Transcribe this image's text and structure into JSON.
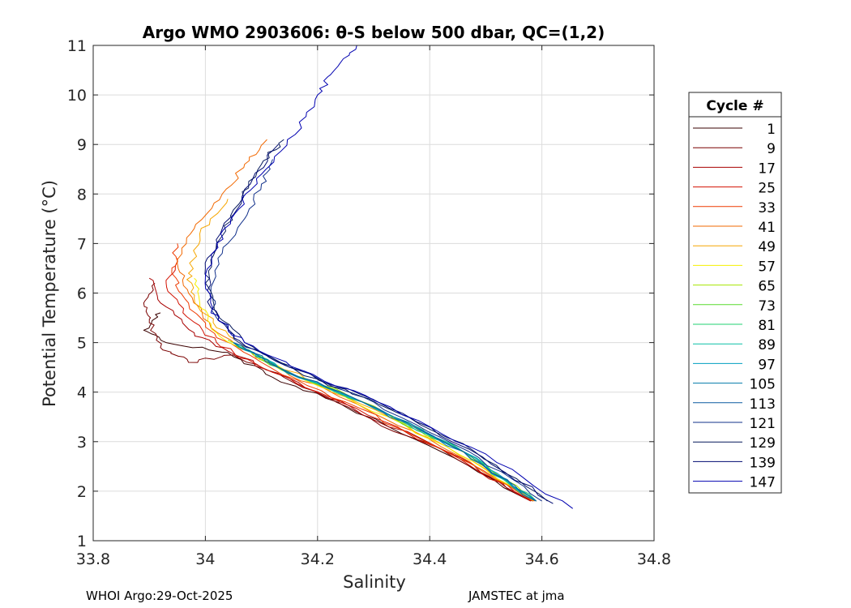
{
  "chart_data": {
    "type": "line",
    "title": "Argo WMO 2903606: θ-S below 500 dbar,  QC=(1,2)",
    "xlabel": "Salinity",
    "ylabel": "Potential Temperature (°C)",
    "xlim": [
      33.8,
      34.8
    ],
    "ylim": [
      1,
      11
    ],
    "x_ticks": [
      "33.8",
      "34",
      "34.2",
      "34.4",
      "34.6",
      "34.8"
    ],
    "y_ticks": [
      "1",
      "2",
      "3",
      "4",
      "5",
      "6",
      "7",
      "8",
      "9",
      "10",
      "11"
    ],
    "grid": true,
    "legend_title": "Cycle #",
    "legend_position": "right",
    "series": [
      {
        "name": "1",
        "color": "#3a0000",
        "points": [
          [
            34.58,
            1.8
          ],
          [
            34.42,
            2.8
          ],
          [
            34.25,
            3.7
          ],
          [
            34.12,
            4.3
          ],
          [
            34.04,
            4.8
          ],
          [
            33.93,
            5.0
          ],
          [
            33.89,
            5.25
          ],
          [
            33.92,
            5.6
          ]
        ]
      },
      {
        "name": "9",
        "color": "#7a0000",
        "points": [
          [
            34.585,
            1.8
          ],
          [
            34.44,
            2.7
          ],
          [
            34.27,
            3.6
          ],
          [
            34.14,
            4.3
          ],
          [
            34.05,
            4.75
          ],
          [
            33.97,
            4.6
          ],
          [
            33.92,
            4.9
          ],
          [
            33.9,
            5.4
          ],
          [
            33.89,
            5.8
          ],
          [
            33.91,
            6.2
          ]
        ]
      },
      {
        "name": "17",
        "color": "#a80000",
        "points": [
          [
            34.583,
            1.8
          ],
          [
            34.43,
            2.8
          ],
          [
            34.26,
            3.7
          ],
          [
            34.12,
            4.4
          ],
          [
            34.03,
            4.9
          ],
          [
            33.98,
            5.2
          ],
          [
            33.92,
            5.8
          ],
          [
            33.9,
            6.3
          ]
        ]
      },
      {
        "name": "25",
        "color": "#d21000",
        "points": [
          [
            34.58,
            1.8
          ],
          [
            34.41,
            2.9
          ],
          [
            34.24,
            3.8
          ],
          [
            34.1,
            4.5
          ],
          [
            34.02,
            5.0
          ],
          [
            33.96,
            5.6
          ],
          [
            33.93,
            6.2
          ],
          [
            33.95,
            6.7
          ]
        ]
      },
      {
        "name": "33",
        "color": "#ee3a00",
        "points": [
          [
            34.587,
            1.8
          ],
          [
            34.42,
            2.85
          ],
          [
            34.25,
            3.8
          ],
          [
            34.1,
            4.6
          ],
          [
            34.02,
            5.1
          ],
          [
            33.97,
            5.8
          ],
          [
            33.94,
            6.4
          ],
          [
            33.95,
            7.0
          ]
        ]
      },
      {
        "name": "41",
        "color": "#f26800",
        "points": [
          [
            34.585,
            1.8
          ],
          [
            34.42,
            2.9
          ],
          [
            34.24,
            3.9
          ],
          [
            34.09,
            4.7
          ],
          [
            34.01,
            5.3
          ],
          [
            33.97,
            6.0
          ],
          [
            33.95,
            6.6
          ],
          [
            33.98,
            7.3
          ],
          [
            34.03,
            8.0
          ],
          [
            34.07,
            8.6
          ],
          [
            34.11,
            9.1
          ]
        ]
      },
      {
        "name": "49",
        "color": "#f6a600",
        "points": [
          [
            34.585,
            1.8
          ],
          [
            34.43,
            2.9
          ],
          [
            34.25,
            3.9
          ],
          [
            34.1,
            4.7
          ],
          [
            34.02,
            5.3
          ],
          [
            33.98,
            5.9
          ],
          [
            33.97,
            6.4
          ],
          [
            33.99,
            7.2
          ],
          [
            34.04,
            7.9
          ]
        ]
      },
      {
        "name": "57",
        "color": "#f5f000",
        "points": [
          [
            34.59,
            1.8
          ],
          [
            34.43,
            2.9
          ],
          [
            34.25,
            3.9
          ],
          [
            34.1,
            4.65
          ],
          [
            34.02,
            5.2
          ],
          [
            33.99,
            5.8
          ],
          [
            33.98,
            6.3
          ]
        ]
      },
      {
        "name": "65",
        "color": "#a6e600",
        "points": [
          [
            34.59,
            1.8
          ],
          [
            34.45,
            2.85
          ],
          [
            34.27,
            3.85
          ],
          [
            34.12,
            4.55
          ],
          [
            34.04,
            5.05
          ]
        ]
      },
      {
        "name": "73",
        "color": "#59dc2e",
        "points": [
          [
            34.59,
            1.8
          ],
          [
            34.46,
            2.8
          ],
          [
            34.28,
            3.8
          ],
          [
            34.13,
            4.5
          ],
          [
            34.05,
            5.0
          ]
        ]
      },
      {
        "name": "81",
        "color": "#20d070",
        "points": [
          [
            34.59,
            1.8
          ],
          [
            34.46,
            2.8
          ],
          [
            34.28,
            3.8
          ],
          [
            34.13,
            4.5
          ],
          [
            34.05,
            5.0
          ]
        ]
      },
      {
        "name": "89",
        "color": "#0abfa6",
        "points": [
          [
            34.59,
            1.8
          ],
          [
            34.46,
            2.8
          ],
          [
            34.28,
            3.8
          ],
          [
            34.13,
            4.5
          ],
          [
            34.05,
            5.0
          ]
        ]
      },
      {
        "name": "97",
        "color": "#009fc0",
        "points": [
          [
            34.59,
            1.8
          ],
          [
            34.46,
            2.8
          ],
          [
            34.28,
            3.8
          ],
          [
            34.13,
            4.5
          ],
          [
            34.05,
            5.0
          ]
        ]
      },
      {
        "name": "105",
        "color": "#007aa8",
        "points": [
          [
            34.59,
            1.8
          ],
          [
            34.46,
            2.8
          ],
          [
            34.28,
            3.8
          ],
          [
            34.13,
            4.5
          ],
          [
            34.05,
            5.0
          ]
        ]
      },
      {
        "name": "113",
        "color": "#0a5aa0",
        "points": [
          [
            34.59,
            1.8
          ],
          [
            34.46,
            2.8
          ],
          [
            34.28,
            3.8
          ],
          [
            34.13,
            4.5
          ],
          [
            34.05,
            5.0
          ]
        ]
      },
      {
        "name": "121",
        "color": "#11308a",
        "points": [
          [
            34.6,
            1.8
          ],
          [
            34.47,
            2.8
          ],
          [
            34.3,
            3.8
          ],
          [
            34.15,
            4.5
          ],
          [
            34.06,
            5.0
          ],
          [
            34.02,
            5.5
          ],
          [
            34.01,
            6.0
          ],
          [
            34.03,
            6.8
          ],
          [
            34.07,
            7.5
          ],
          [
            34.1,
            8.2
          ],
          [
            34.12,
            8.7
          ]
        ]
      },
      {
        "name": "129",
        "color": "#05185c",
        "points": [
          [
            34.61,
            1.8
          ],
          [
            34.48,
            2.8
          ],
          [
            34.31,
            3.75
          ],
          [
            34.16,
            4.45
          ],
          [
            34.07,
            5.0
          ],
          [
            34.02,
            5.6
          ],
          [
            34.0,
            6.2
          ],
          [
            34.02,
            7.0
          ],
          [
            34.06,
            7.8
          ],
          [
            34.1,
            8.6
          ],
          [
            34.14,
            9.1
          ]
        ]
      },
      {
        "name": "139",
        "color": "#000a70",
        "points": [
          [
            34.62,
            1.75
          ],
          [
            34.47,
            2.85
          ],
          [
            34.3,
            3.85
          ],
          [
            34.14,
            4.55
          ],
          [
            34.05,
            5.1
          ],
          [
            34.01,
            5.7
          ],
          [
            34.0,
            6.5
          ],
          [
            34.03,
            7.3
          ],
          [
            34.08,
            8.2
          ],
          [
            34.13,
            9.0
          ]
        ]
      },
      {
        "name": "147",
        "color": "#0000b0",
        "points": [
          [
            34.655,
            1.65
          ],
          [
            34.5,
            2.75
          ],
          [
            34.33,
            3.7
          ],
          [
            34.17,
            4.45
          ],
          [
            34.07,
            5.0
          ],
          [
            34.01,
            5.6
          ],
          [
            34.0,
            6.3
          ],
          [
            34.02,
            7.0
          ],
          [
            34.06,
            7.7
          ],
          [
            34.1,
            8.4
          ],
          [
            34.16,
            9.2
          ],
          [
            34.2,
            10.0
          ],
          [
            34.23,
            10.5
          ],
          [
            34.27,
            11.0
          ]
        ]
      }
    ]
  },
  "footer": {
    "left": "WHOI Argo:29-Oct-2025",
    "right": "JAMSTEC at jma"
  }
}
